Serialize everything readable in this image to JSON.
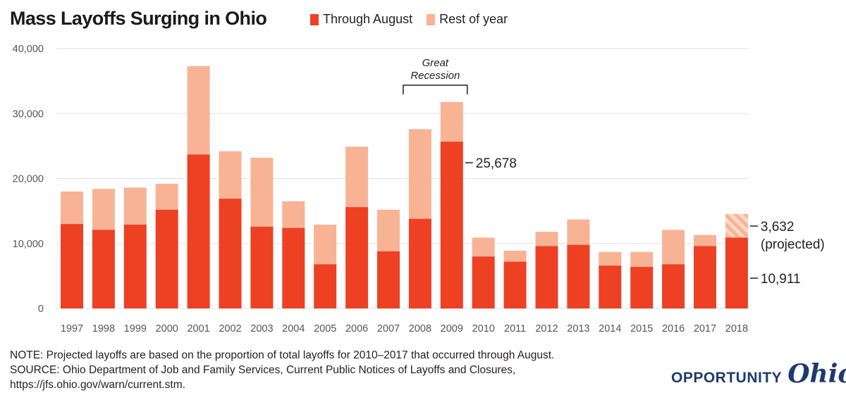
{
  "colors": {
    "through_august": "#ee4023",
    "rest_of_year": "#f8b395",
    "projected": "#f8b395",
    "grid": "#e2e2e2",
    "axis_text": "#555555",
    "logo": "#1e3a6e"
  },
  "chart_data": {
    "type": "bar",
    "stacked": true,
    "title": "Mass Layoffs Surging in Ohio",
    "categories": [
      "1997",
      "1998",
      "1999",
      "2000",
      "2001",
      "2002",
      "2003",
      "2004",
      "2005",
      "2006",
      "2007",
      "2008",
      "2009",
      "2010",
      "2011",
      "2012",
      "2013",
      "2014",
      "2015",
      "2016",
      "2017",
      "2018"
    ],
    "series": [
      {
        "name": "Through August",
        "values": [
          13000,
          12100,
          12900,
          15200,
          23700,
          16900,
          12600,
          12400,
          6800,
          15600,
          8800,
          13800,
          25678,
          8000,
          7200,
          9600,
          9800,
          6600,
          6400,
          6800,
          9600,
          10911
        ]
      },
      {
        "name": "Rest of year",
        "values": [
          5000,
          6300,
          5700,
          4000,
          13600,
          7300,
          10600,
          4100,
          6100,
          9300,
          6400,
          13800,
          6100,
          2900,
          1700,
          2200,
          3900,
          2100,
          2300,
          5300,
          1700,
          3632
        ],
        "projected_index": 21
      }
    ],
    "ylim": [
      0,
      40000
    ],
    "yticks": [
      0,
      10000,
      20000,
      30000,
      40000
    ],
    "ytick_labels": [
      "0",
      "10,000",
      "20,000",
      "30,000",
      "40,000"
    ],
    "grid": true,
    "legend_placement": "top",
    "annotations": {
      "recession_line1": "Great",
      "recession_line2": "Recession",
      "recession_range": [
        "2008",
        "2009"
      ],
      "label_2009": "25,678",
      "label_2018_projected_value": "3,632",
      "label_2018_projected_text": "(projected)",
      "label_2018_through": "10,911"
    }
  },
  "notes": {
    "note": "NOTE: Projected layoffs are based on the proportion of total layoffs for 2010–2017 that occurred through August.",
    "source1": "SOURCE: Ohio Department of Job and Family Services, Current Public Notices of Layoffs and Closures,",
    "source2": "https://jfs.ohio.gov/warn/current.stm."
  },
  "logo": {
    "word1": "OPPORTUNITY",
    "word2": "Ohio"
  }
}
